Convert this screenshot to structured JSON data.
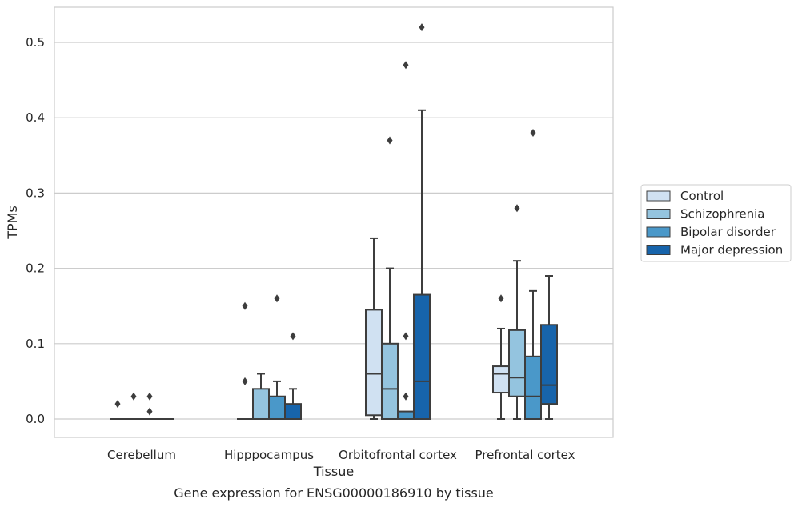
{
  "caption": "Gene expression for ENSG00000186910 by tissue",
  "chart_data": {
    "type": "box",
    "xlabel": "Tissue",
    "ylabel": "TPMs",
    "categories": [
      "Cerebellum",
      "Hipppocampus",
      "Orbitofrontal cortex",
      "Prefrontal cortex"
    ],
    "ylim": [
      -0.025,
      0.55
    ],
    "yticks": [
      0.0,
      0.1,
      0.2,
      0.3,
      0.4,
      0.5
    ],
    "ytick_labels": [
      "0.0",
      "0.1",
      "0.2",
      "0.3",
      "0.4",
      "0.5"
    ],
    "grid": true,
    "legend_position": "right",
    "series": [
      {
        "name": "Control",
        "color": "#d0e1f2",
        "boxes": [
          {
            "whislo": 0,
            "q1": 0,
            "med": 0,
            "q3": 0,
            "whishi": 0,
            "fliers": [
              0.02
            ]
          },
          {
            "whislo": 0,
            "q1": 0,
            "med": 0,
            "q3": 0,
            "whishi": 0,
            "fliers": [
              0.05,
              0.15
            ]
          },
          {
            "whislo": 0,
            "q1": 0.005,
            "med": 0.06,
            "q3": 0.145,
            "whishi": 0.24,
            "fliers": []
          },
          {
            "whislo": 0,
            "q1": 0.035,
            "med": 0.06,
            "q3": 0.07,
            "whishi": 0.12,
            "fliers": [
              0.16
            ]
          }
        ]
      },
      {
        "name": "Schizophrenia",
        "color": "#94c4df",
        "boxes": [
          {
            "whislo": 0,
            "q1": 0,
            "med": 0,
            "q3": 0,
            "whishi": 0,
            "fliers": [
              0.03
            ]
          },
          {
            "whislo": 0,
            "q1": 0,
            "med": 0,
            "q3": 0.04,
            "whishi": 0.06,
            "fliers": []
          },
          {
            "whislo": 0,
            "q1": 0,
            "med": 0.04,
            "q3": 0.1,
            "whishi": 0.2,
            "fliers": [
              0.37
            ]
          },
          {
            "whislo": 0,
            "q1": 0.03,
            "med": 0.055,
            "q3": 0.118,
            "whishi": 0.21,
            "fliers": [
              0.28
            ]
          }
        ]
      },
      {
        "name": "Bipolar disorder",
        "color": "#4a98c9",
        "boxes": [
          {
            "whislo": 0,
            "q1": 0,
            "med": 0,
            "q3": 0,
            "whishi": 0,
            "fliers": [
              0.01,
              0.03
            ]
          },
          {
            "whislo": 0,
            "q1": 0,
            "med": 0,
            "q3": 0.03,
            "whishi": 0.05,
            "fliers": [
              0.16
            ]
          },
          {
            "whislo": 0,
            "q1": 0,
            "med": 0,
            "q3": 0.01,
            "whishi": 0.01,
            "fliers": [
              0.03,
              0.11,
              0.47
            ]
          },
          {
            "whislo": 0,
            "q1": 0,
            "med": 0.03,
            "q3": 0.083,
            "whishi": 0.17,
            "fliers": [
              0.38
            ]
          }
        ]
      },
      {
        "name": "Major depression",
        "color": "#1764ab",
        "boxes": [
          {
            "whislo": 0,
            "q1": 0,
            "med": 0,
            "q3": 0,
            "whishi": 0,
            "fliers": []
          },
          {
            "whislo": 0,
            "q1": 0,
            "med": 0,
            "q3": 0.02,
            "whishi": 0.04,
            "fliers": [
              0.11
            ]
          },
          {
            "whislo": 0,
            "q1": 0,
            "med": 0.05,
            "q3": 0.165,
            "whishi": 0.41,
            "fliers": [
              0.52
            ]
          },
          {
            "whislo": 0,
            "q1": 0.02,
            "med": 0.045,
            "q3": 0.125,
            "whishi": 0.19,
            "fliers": []
          }
        ]
      }
    ]
  }
}
